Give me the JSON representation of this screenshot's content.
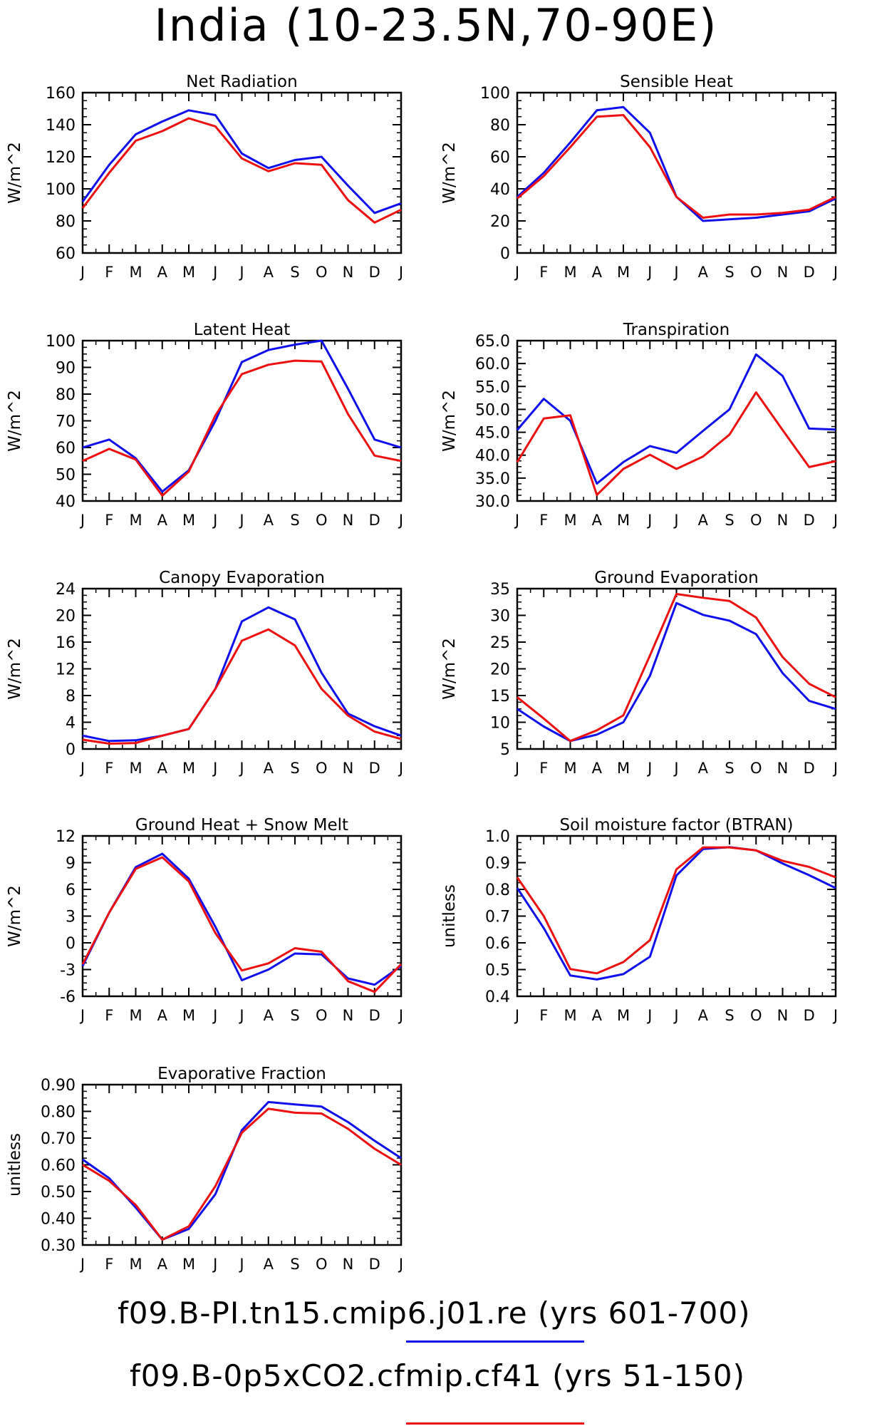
{
  "title": "India (10-23.5N,70-90E)",
  "months": [
    "J",
    "F",
    "M",
    "A",
    "M",
    "J",
    "J",
    "A",
    "S",
    "O",
    "N",
    "D",
    "J"
  ],
  "legend": [
    {
      "label": "f09.B-PI.tn15.cmip6.j01.re (yrs 601-700)",
      "color": "#1010ee"
    },
    {
      "label": "f09.B-0p5xCO2.cfmip.cf41 (yrs 51-150)",
      "color": "#ee1010"
    }
  ],
  "chart_data": [
    {
      "type": "line",
      "title": "Net Radiation",
      "ylabel": "W/m^2",
      "ylim": [
        60,
        160
      ],
      "yticks": [
        60,
        80,
        100,
        120,
        140,
        160
      ],
      "yfmt": 0,
      "categories": [
        "J",
        "F",
        "M",
        "A",
        "M",
        "J",
        "J",
        "A",
        "S",
        "O",
        "N",
        "D",
        "J"
      ],
      "series": [
        {
          "color": "#1010ee",
          "values": [
            92,
            115,
            134,
            142,
            149,
            146,
            122,
            113,
            118,
            120,
            102,
            85,
            91
          ]
        },
        {
          "color": "#ee1010",
          "values": [
            88,
            110,
            130,
            136,
            144,
            139,
            119,
            111,
            116,
            115,
            93,
            79,
            87
          ]
        }
      ]
    },
    {
      "type": "line",
      "title": "Sensible Heat",
      "ylabel": "W/m^2",
      "ylim": [
        0,
        100
      ],
      "yticks": [
        0,
        20,
        40,
        60,
        80,
        100
      ],
      "yfmt": 0,
      "categories": [
        "J",
        "F",
        "M",
        "A",
        "M",
        "J",
        "J",
        "A",
        "S",
        "O",
        "N",
        "D",
        "J"
      ],
      "series": [
        {
          "color": "#1010ee",
          "values": [
            35,
            50,
            69,
            89,
            91,
            75,
            35,
            20,
            21,
            22,
            24,
            26,
            34
          ]
        },
        {
          "color": "#ee1010",
          "values": [
            34,
            48,
            66,
            85,
            86,
            66,
            35,
            22,
            24,
            24,
            25,
            27,
            35
          ]
        }
      ]
    },
    {
      "type": "line",
      "title": "Latent Heat",
      "ylabel": "W/m^2",
      "ylim": [
        40,
        100
      ],
      "yticks": [
        40,
        50,
        60,
        70,
        80,
        90,
        100
      ],
      "yfmt": 0,
      "categories": [
        "J",
        "F",
        "M",
        "A",
        "M",
        "J",
        "J",
        "A",
        "S",
        "O",
        "N",
        "D",
        "J"
      ],
      "series": [
        {
          "color": "#1010ee",
          "values": [
            60,
            63,
            56,
            43.5,
            51.5,
            70,
            92,
            96.5,
            98.5,
            100,
            82,
            63,
            60
          ]
        },
        {
          "color": "#ee1010",
          "values": [
            55,
            59.5,
            55.5,
            42,
            51,
            72,
            87.5,
            91,
            92.5,
            92.2,
            72.5,
            57,
            55
          ]
        }
      ]
    },
    {
      "type": "line",
      "title": "Transpiration",
      "ylabel": "W/m^2",
      "ylim": [
        30,
        65
      ],
      "yticks": [
        30,
        35,
        40,
        45,
        50,
        55,
        60,
        65
      ],
      "yfmt": 1,
      "categories": [
        "J",
        "F",
        "M",
        "A",
        "M",
        "J",
        "J",
        "A",
        "S",
        "O",
        "N",
        "D",
        "J"
      ],
      "series": [
        {
          "color": "#1010ee",
          "values": [
            45.5,
            52.3,
            47.5,
            33.8,
            38.5,
            42,
            40.5,
            45.3,
            50,
            62,
            57.3,
            45.8,
            45.6
          ]
        },
        {
          "color": "#ee1010",
          "values": [
            38.5,
            48,
            48.7,
            31.3,
            37,
            40.1,
            37,
            39.7,
            44.5,
            53.7,
            45.5,
            37.4,
            38.7
          ]
        }
      ]
    },
    {
      "type": "line",
      "title": "Canopy Evaporation",
      "ylabel": "W/m^2",
      "ylim": [
        0,
        24
      ],
      "yticks": [
        0,
        4,
        8,
        12,
        16,
        20,
        24
      ],
      "yfmt": 0,
      "categories": [
        "J",
        "F",
        "M",
        "A",
        "M",
        "J",
        "J",
        "A",
        "S",
        "O",
        "N",
        "D",
        "J"
      ],
      "series": [
        {
          "color": "#1010ee",
          "values": [
            2,
            1.2,
            1.3,
            2,
            3,
            9,
            19.1,
            21.2,
            19.4,
            11.4,
            5.3,
            3.4,
            2
          ]
        },
        {
          "color": "#ee1010",
          "values": [
            1.4,
            0.8,
            0.9,
            2,
            3,
            9,
            16.2,
            17.9,
            15.5,
            9,
            5,
            2.6,
            1.5
          ]
        }
      ]
    },
    {
      "type": "line",
      "title": "Ground Evaporation",
      "ylabel": "W/m^2",
      "ylim": [
        5,
        35
      ],
      "yticks": [
        5,
        10,
        15,
        20,
        25,
        30,
        35
      ],
      "yfmt": 0,
      "categories": [
        "J",
        "F",
        "M",
        "A",
        "M",
        "J",
        "J",
        "A",
        "S",
        "O",
        "N",
        "D",
        "J"
      ],
      "series": [
        {
          "color": "#1010ee",
          "values": [
            12.5,
            9.2,
            6.5,
            7.7,
            10,
            18.7,
            32.3,
            30.1,
            29,
            26.5,
            19.2,
            14,
            12.5
          ]
        },
        {
          "color": "#ee1010",
          "values": [
            14.7,
            10.7,
            6.5,
            8.5,
            11.3,
            22.5,
            34,
            33.3,
            32.7,
            29.6,
            22.2,
            17.2,
            14.7
          ]
        }
      ]
    },
    {
      "type": "line",
      "title": "Ground Heat + Snow Melt",
      "ylabel": "W/m^2",
      "ylim": [
        -6,
        12
      ],
      "yticks": [
        -6,
        -3,
        0,
        3,
        6,
        9,
        12
      ],
      "yfmt": 0,
      "categories": [
        "J",
        "F",
        "M",
        "A",
        "M",
        "J",
        "J",
        "A",
        "S",
        "O",
        "N",
        "D",
        "J"
      ],
      "series": [
        {
          "color": "#1010ee",
          "values": [
            -2.6,
            3.4,
            8.5,
            10,
            7.2,
            1.8,
            -4.2,
            -3,
            -1.2,
            -1.3,
            -4,
            -4.7,
            -2.6
          ]
        },
        {
          "color": "#ee1010",
          "values": [
            -2.4,
            3.4,
            8.3,
            9.6,
            6.9,
            1.1,
            -3.1,
            -2.3,
            -0.6,
            -1,
            -4.3,
            -5.5,
            -2.4
          ]
        }
      ]
    },
    {
      "type": "line",
      "title": "Soil moisture factor (BTRAN)",
      "ylabel": "unitless",
      "ylim": [
        0.4,
        1.0
      ],
      "yticks": [
        0.4,
        0.5,
        0.6,
        0.7,
        0.8,
        0.9,
        1.0
      ],
      "yfmt": 1,
      "categories": [
        "J",
        "F",
        "M",
        "A",
        "M",
        "J",
        "J",
        "A",
        "S",
        "O",
        "N",
        "D",
        "J"
      ],
      "series": [
        {
          "color": "#1010ee",
          "values": [
            0.805,
            0.655,
            0.478,
            0.463,
            0.483,
            0.548,
            0.852,
            0.951,
            0.958,
            0.946,
            0.897,
            0.853,
            0.805
          ]
        },
        {
          "color": "#ee1010",
          "values": [
            0.845,
            0.7,
            0.502,
            0.486,
            0.528,
            0.61,
            0.875,
            0.957,
            0.957,
            0.946,
            0.907,
            0.884,
            0.845
          ]
        }
      ]
    },
    {
      "type": "line",
      "title": "Evaporative Fraction",
      "ylabel": "unitless",
      "ylim": [
        0.3,
        0.9
      ],
      "yticks": [
        0.3,
        0.4,
        0.5,
        0.6,
        0.7,
        0.8,
        0.9
      ],
      "yfmt": 2,
      "categories": [
        "J",
        "F",
        "M",
        "A",
        "M",
        "J",
        "J",
        "A",
        "S",
        "O",
        "N",
        "D",
        "J"
      ],
      "series": [
        {
          "color": "#1010ee",
          "values": [
            0.62,
            0.55,
            0.44,
            0.32,
            0.36,
            0.49,
            0.73,
            0.835,
            0.826,
            0.818,
            0.76,
            0.69,
            0.625
          ]
        },
        {
          "color": "#ee1010",
          "values": [
            0.6,
            0.54,
            0.45,
            0.32,
            0.37,
            0.52,
            0.72,
            0.81,
            0.795,
            0.792,
            0.735,
            0.66,
            0.6
          ]
        }
      ]
    }
  ]
}
